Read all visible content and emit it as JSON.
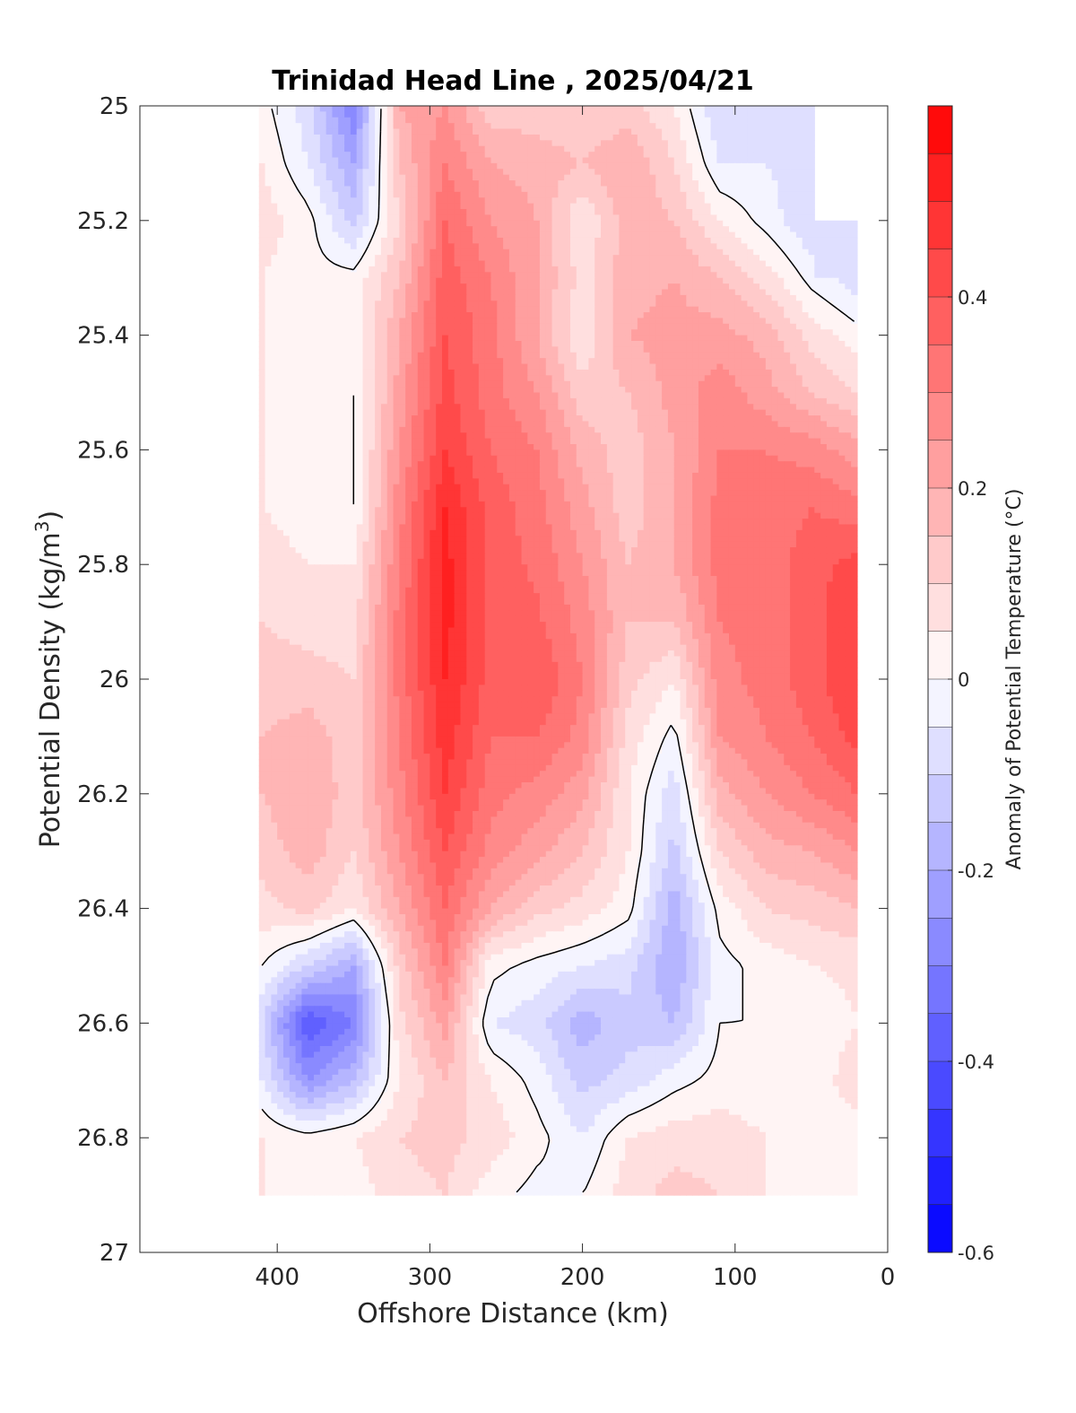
{
  "chart_data": {
    "type": "heatmap",
    "subtype": "filled-contour",
    "title": "Trinidad Head Line , 2025/04/21",
    "xlabel": "Offshore Distance (km)",
    "ylabel": {
      "main": "Potential Density (kg/m",
      "superscript": "3",
      "close": ")"
    },
    "x_reversed": true,
    "y_reversed": true,
    "xlim": [
      490,
      0
    ],
    "ylim": [
      25,
      27
    ],
    "xticks": [
      400,
      300,
      200,
      100,
      0
    ],
    "yticks": [
      25,
      25.2,
      25.4,
      25.6,
      25.8,
      26,
      26.2,
      26.4,
      26.6,
      26.8,
      27
    ],
    "data_extent": {
      "x": [
        412,
        20
      ],
      "y": [
        25,
        26.9
      ]
    },
    "grid": {
      "x": [
        410,
        380,
        350,
        320,
        290,
        260,
        230,
        200,
        170,
        140,
        110,
        80,
        50,
        20
      ],
      "y": [
        25,
        25.1,
        25.2,
        25.3,
        25.4,
        25.5,
        25.6,
        25.7,
        25.8,
        25.9,
        26,
        26.1,
        26.2,
        26.3,
        26.4,
        26.5,
        26.6,
        26.7,
        26.8,
        26.9
      ],
      "values": [
        [
          0.02,
          -0.08,
          -0.3,
          0.2,
          0.25,
          0.12,
          0.12,
          0.1,
          0.12,
          0.05,
          -0.1,
          -0.08,
          null,
          null
        ],
        [
          0.05,
          -0.05,
          -0.2,
          0.15,
          0.3,
          0.2,
          0.18,
          0.15,
          0.2,
          0.1,
          -0.05,
          -0.05,
          -0.08,
          null
        ],
        [
          0.08,
          0.02,
          -0.12,
          0.1,
          0.35,
          0.25,
          0.2,
          0.05,
          0.18,
          0.15,
          0.05,
          -0.02,
          -0.1,
          null
        ],
        [
          0.05,
          0.02,
          0.02,
          0.15,
          0.38,
          0.3,
          0.2,
          0.08,
          0.18,
          0.2,
          0.15,
          0.08,
          -0.02,
          -0.08
        ],
        [
          0.05,
          0.02,
          0.02,
          0.2,
          0.4,
          0.32,
          0.2,
          0.05,
          0.2,
          0.22,
          0.22,
          0.18,
          0.08,
          0.02
        ],
        [
          0.05,
          0.02,
          0.0,
          0.22,
          0.42,
          0.32,
          0.25,
          0.12,
          0.15,
          0.22,
          0.28,
          0.22,
          0.15,
          0.1
        ],
        [
          0.05,
          0.02,
          0.0,
          0.25,
          0.45,
          0.35,
          0.3,
          0.18,
          0.12,
          0.2,
          0.3,
          0.3,
          0.28,
          0.22
        ],
        [
          0.05,
          0.02,
          0.0,
          0.28,
          0.5,
          0.38,
          0.32,
          0.22,
          0.12,
          0.2,
          0.32,
          0.32,
          0.35,
          0.32
        ],
        [
          0.08,
          0.05,
          0.05,
          0.3,
          0.52,
          0.38,
          0.34,
          0.25,
          0.15,
          0.2,
          0.32,
          0.32,
          0.38,
          0.42
        ],
        [
          0.1,
          0.08,
          0.08,
          0.32,
          0.52,
          0.38,
          0.36,
          0.28,
          0.15,
          0.15,
          0.3,
          0.32,
          0.38,
          0.45
        ],
        [
          0.12,
          0.12,
          0.1,
          0.32,
          0.5,
          0.38,
          0.4,
          0.3,
          0.12,
          0.05,
          0.28,
          0.32,
          0.38,
          0.45
        ],
        [
          0.15,
          0.18,
          0.12,
          0.3,
          0.48,
          0.35,
          0.35,
          0.28,
          0.08,
          -0.02,
          0.25,
          0.3,
          0.35,
          0.42
        ],
        [
          0.15,
          0.2,
          0.12,
          0.28,
          0.45,
          0.32,
          0.28,
          0.22,
          0.05,
          -0.08,
          0.18,
          0.25,
          0.3,
          0.35
        ],
        [
          0.12,
          0.18,
          0.1,
          0.25,
          0.4,
          0.28,
          0.22,
          0.15,
          0.05,
          -0.12,
          0.1,
          0.18,
          0.2,
          0.25
        ],
        [
          0.08,
          0.12,
          0.05,
          0.2,
          0.35,
          0.2,
          0.12,
          0.08,
          0.02,
          -0.18,
          0.02,
          0.1,
          0.12,
          0.15
        ],
        [
          0.0,
          -0.1,
          -0.2,
          0.12,
          0.3,
          0.02,
          -0.02,
          -0.05,
          -0.08,
          -0.2,
          -0.02,
          0.02,
          0.05,
          0.06
        ],
        [
          -0.1,
          -0.4,
          -0.3,
          0.08,
          0.22,
          -0.05,
          -0.08,
          -0.18,
          -0.12,
          -0.15,
          0.0,
          0.0,
          0.02,
          0.05
        ],
        [
          -0.05,
          -0.25,
          -0.15,
          0.05,
          0.15,
          0.05,
          -0.02,
          -0.12,
          -0.08,
          -0.02,
          0.02,
          0.02,
          0.02,
          0.08
        ],
        [
          0.05,
          0.02,
          0.05,
          0.1,
          0.12,
          0.08,
          0.02,
          -0.05,
          0.05,
          0.08,
          0.08,
          0.05,
          0.02,
          0.02
        ],
        [
          0.05,
          0.0,
          0.02,
          0.08,
          0.1,
          0.02,
          -0.02,
          0.0,
          0.08,
          0.12,
          0.1,
          0.05,
          0.02,
          null
        ]
      ]
    },
    "contour_levels_step": 0.05,
    "zero_contour_color": "#000000",
    "colorbar": {
      "label": "Anomaly of Potential Temperature (°C)",
      "range": [
        -0.6,
        0.6
      ],
      "ticks": [
        "0.4",
        "0.2",
        "0",
        "-0.2",
        "-0.4",
        "-0.6"
      ],
      "tick_values": [
        0.4,
        0.2,
        0,
        -0.2,
        -0.4,
        -0.6
      ],
      "levels": 24,
      "colors": {
        "negative": "#0000ff",
        "zero": "#ffffff",
        "positive": "#ff0000"
      }
    }
  }
}
